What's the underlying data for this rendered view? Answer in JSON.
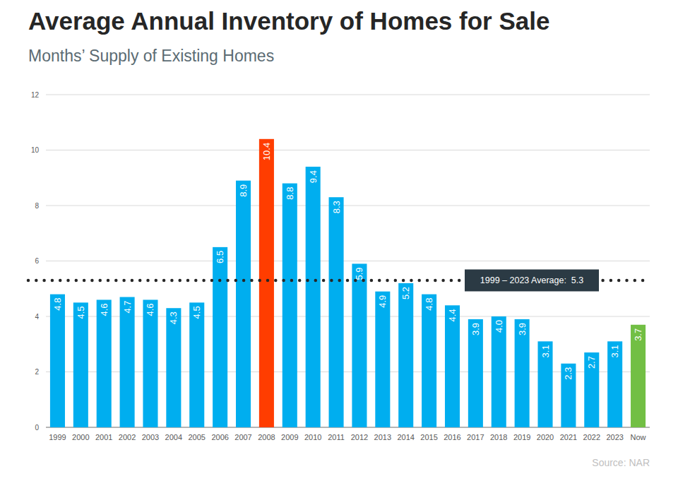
{
  "chart_data": {
    "type": "bar",
    "title": "Average Annual Inventory of Homes for Sale",
    "subtitle": "Months’ Supply of Existing Homes",
    "categories": [
      "1999",
      "2000",
      "2001",
      "2002",
      "2003",
      "2004",
      "2005",
      "2006",
      "2007",
      "2008",
      "2009",
      "2010",
      "2011",
      "2012",
      "2013",
      "2014",
      "2015",
      "2016",
      "2017",
      "2018",
      "2019",
      "2020",
      "2021",
      "2022",
      "2023",
      "Now"
    ],
    "values": [
      4.8,
      4.5,
      4.6,
      4.7,
      4.6,
      4.3,
      4.5,
      6.5,
      8.9,
      10.4,
      8.8,
      9.4,
      8.3,
      5.9,
      4.9,
      5.2,
      4.8,
      4.4,
      3.9,
      4.0,
      3.9,
      3.1,
      2.3,
      2.7,
      3.1,
      3.7
    ],
    "value_labels": [
      "4.8",
      "4.5",
      "4.6",
      "4.7",
      "4.6",
      "4.3",
      "4.5",
      "6.5",
      "8.9",
      "10.4",
      "8.8",
      "9.4",
      "8.3",
      "5.9",
      "4.9",
      "5.2",
      "4.8",
      "4.4",
      "3.9",
      "4.0",
      "3.9",
      "3.1",
      "2.3",
      "2.7",
      "3.1",
      "3.7"
    ],
    "colors": [
      "#00aeef",
      "#00aeef",
      "#00aeef",
      "#00aeef",
      "#00aeef",
      "#00aeef",
      "#00aeef",
      "#00aeef",
      "#00aeef",
      "#ff3d00",
      "#00aeef",
      "#00aeef",
      "#00aeef",
      "#00aeef",
      "#00aeef",
      "#00aeef",
      "#00aeef",
      "#00aeef",
      "#00aeef",
      "#00aeef",
      "#00aeef",
      "#00aeef",
      "#00aeef",
      "#00aeef",
      "#00aeef",
      "#72bf44"
    ],
    "ylim": [
      0,
      12
    ],
    "yticks": [
      0,
      2,
      4,
      6,
      8,
      10,
      12
    ],
    "grid": true,
    "data_labels": true,
    "annotations": [
      {
        "text": "1999 – 2023 Average:  5.3",
        "value": 5.3
      }
    ],
    "source": "Source: NAR"
  }
}
